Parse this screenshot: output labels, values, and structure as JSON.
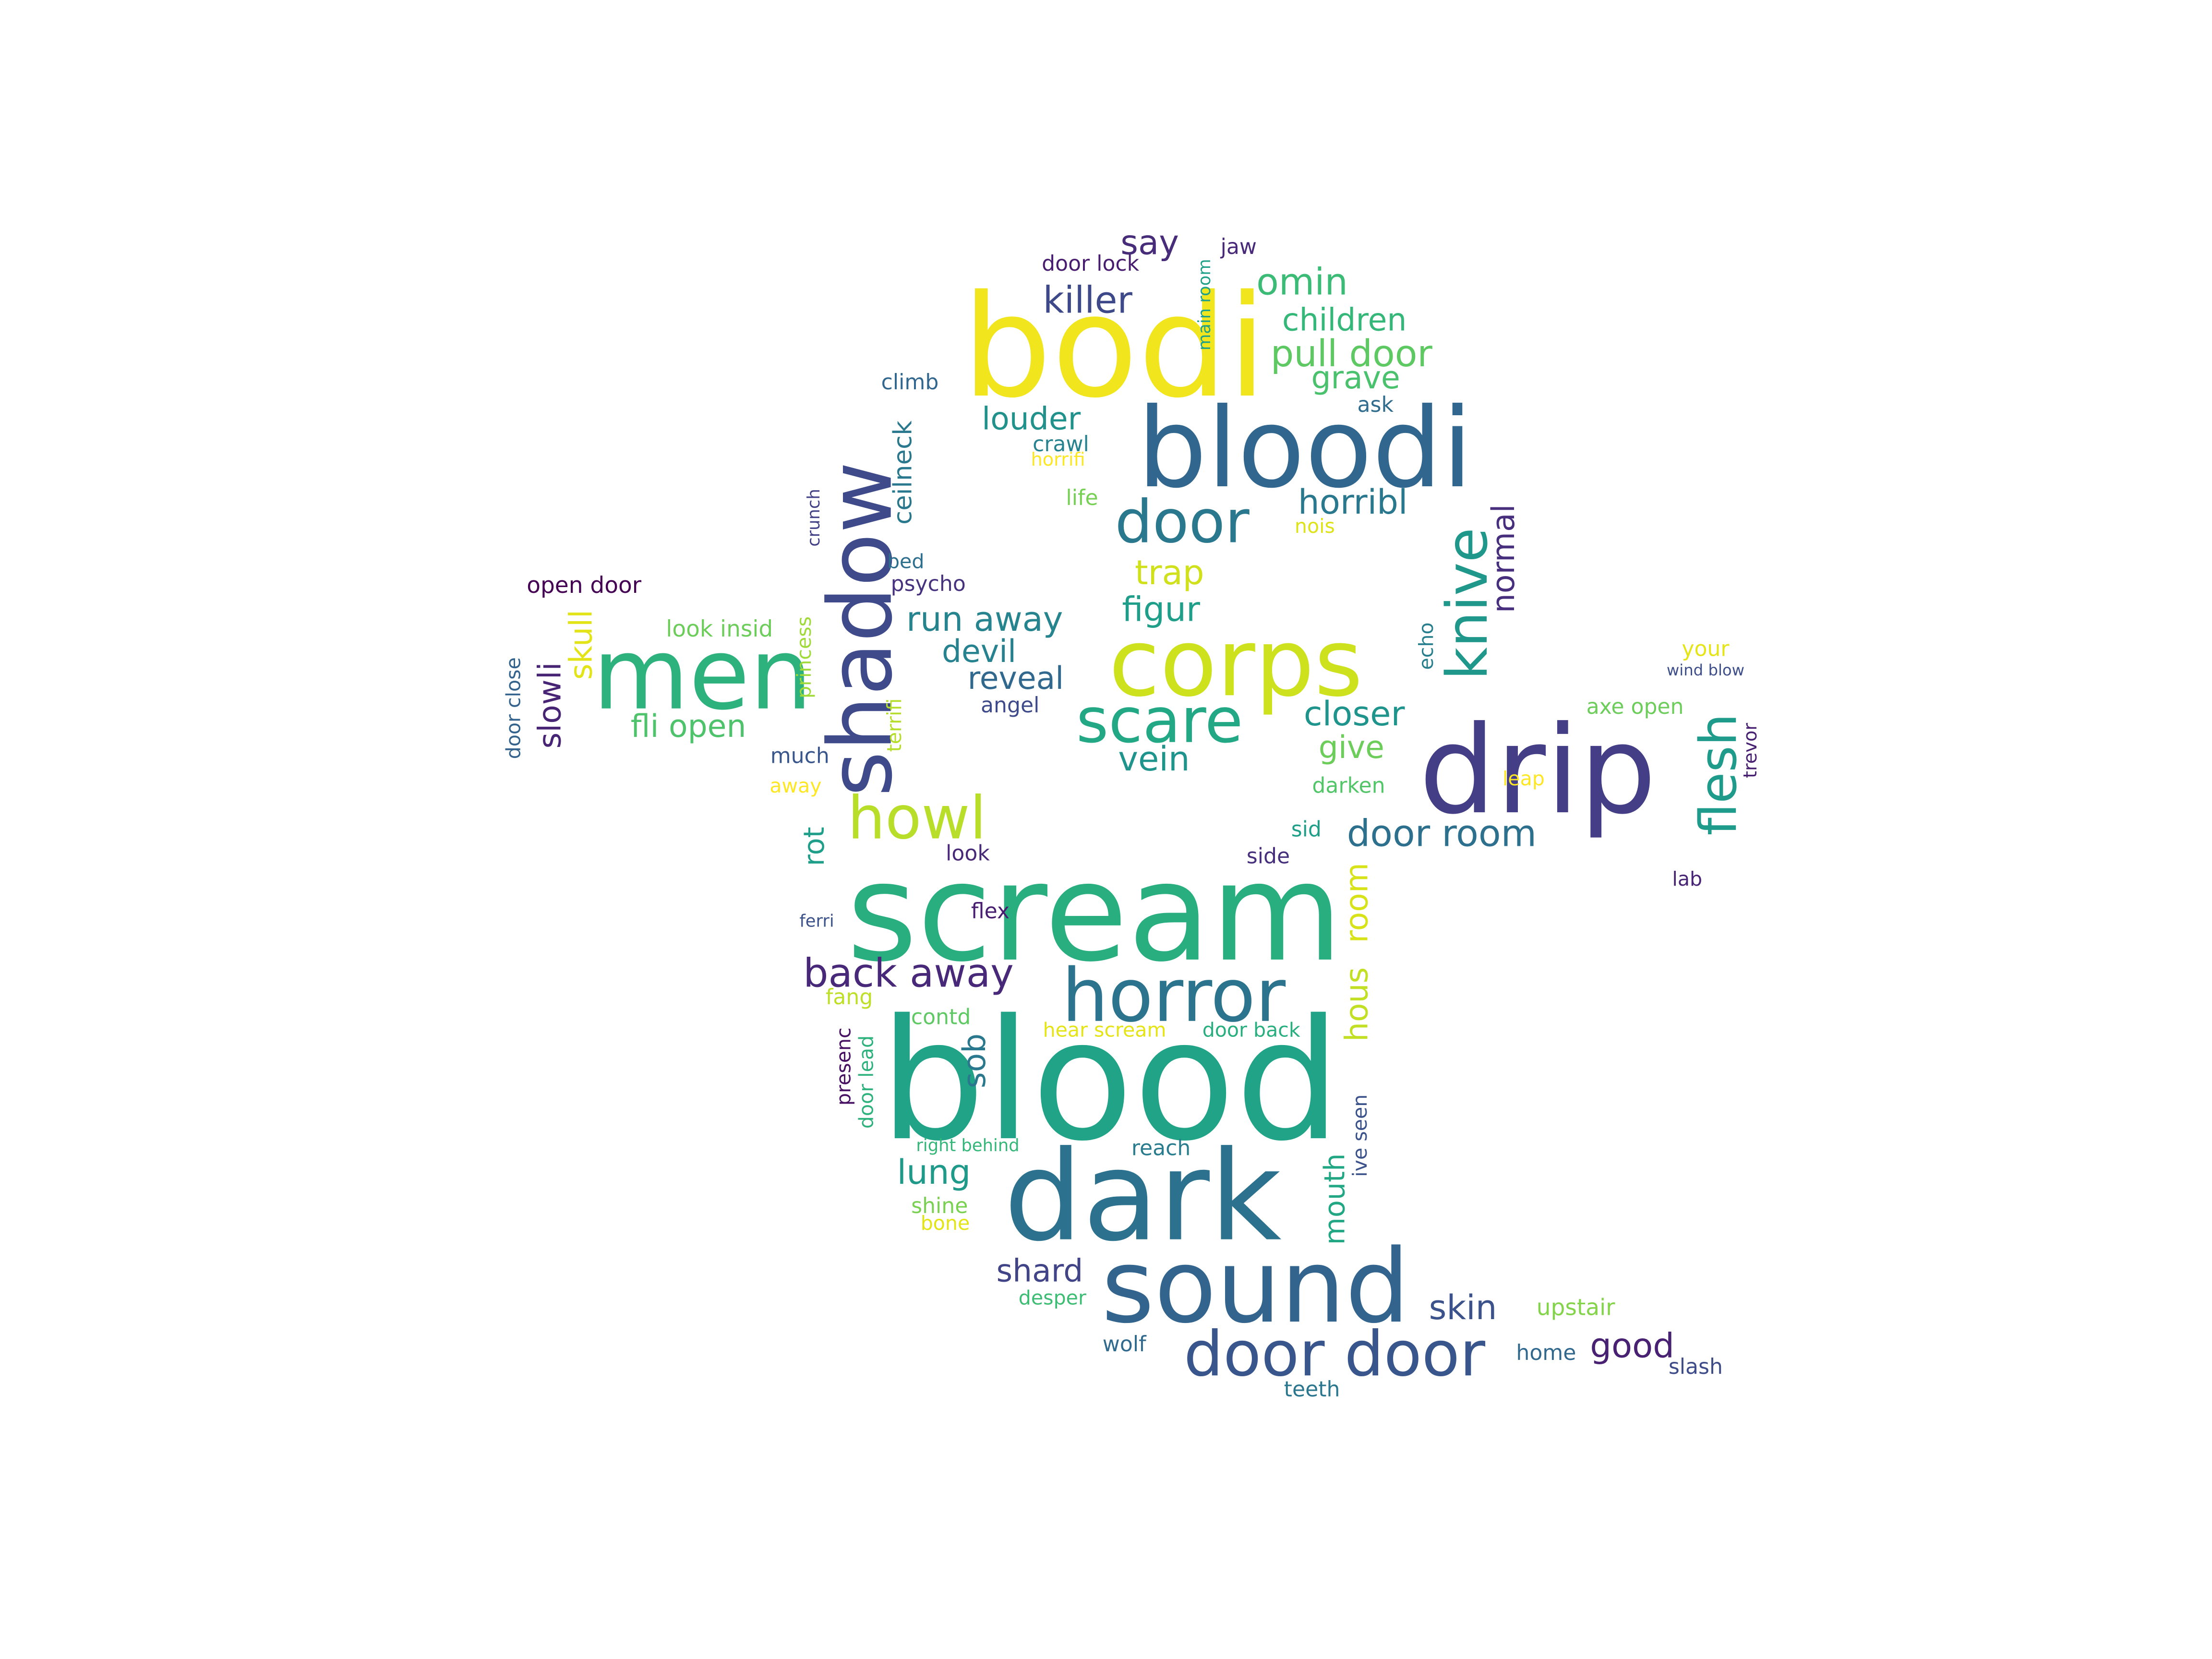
{
  "words": [
    {
      "text": "bodi",
      "color": "#f1e51d"
    },
    {
      "text": "bloodi",
      "color": "#31678e"
    },
    {
      "text": "scream",
      "color": "#29ae80"
    },
    {
      "text": "blood",
      "color": "#20a386"
    },
    {
      "text": "dark",
      "color": "#2c728e"
    },
    {
      "text": "sound",
      "color": "#32648e"
    },
    {
      "text": "drip",
      "color": "#433e85"
    },
    {
      "text": "men",
      "color": "#2db27d"
    },
    {
      "text": "shadow",
      "color": "#3e4a89"
    },
    {
      "text": "corps",
      "color": "#cde11d"
    },
    {
      "text": "horror",
      "color": "#2c738e"
    },
    {
      "text": "door door",
      "color": "#39568c"
    },
    {
      "text": "scare",
      "color": "#22a884"
    },
    {
      "text": "howl",
      "color": "#b8de29"
    },
    {
      "text": "door",
      "color": "#2a788e"
    },
    {
      "text": "knive",
      "color": "#1f988b"
    },
    {
      "text": "flesh",
      "color": "#1e9b8a"
    },
    {
      "text": "back away",
      "color": "#482878"
    },
    {
      "text": "door room",
      "color": "#2d708e"
    },
    {
      "text": "killer",
      "color": "#3e4989"
    },
    {
      "text": "omin",
      "color": "#3bbb75"
    },
    {
      "text": "children",
      "color": "#35b779"
    },
    {
      "text": "pull door",
      "color": "#5ec962"
    },
    {
      "text": "grave",
      "color": "#4ac16d"
    },
    {
      "text": "louder",
      "color": "#21918c"
    },
    {
      "text": "horribl",
      "color": "#2a788e"
    },
    {
      "text": "trap",
      "color": "#d0e11c"
    },
    {
      "text": "figur",
      "color": "#1f9e89"
    },
    {
      "text": "run away",
      "color": "#25848e"
    },
    {
      "text": "devil",
      "color": "#26828e"
    },
    {
      "text": "reveal",
      "color": "#31688e"
    },
    {
      "text": "closer",
      "color": "#1f948c"
    },
    {
      "text": "give",
      "color": "#6ccd5a"
    },
    {
      "text": "vein",
      "color": "#1f948c"
    },
    {
      "text": "fli open",
      "color": "#4ec36b"
    },
    {
      "text": "skull",
      "color": "#e2e418"
    },
    {
      "text": "slowli",
      "color": "#482475"
    },
    {
      "text": "normal",
      "color": "#472f7d"
    },
    {
      "text": "say",
      "color": "#472c7a"
    },
    {
      "text": "ceilneck",
      "color": "#2a788e"
    },
    {
      "text": "rot",
      "color": "#1f9e89"
    },
    {
      "text": "room",
      "color": "#d8e219"
    },
    {
      "text": "hous",
      "color": "#c2df23"
    },
    {
      "text": "sob",
      "color": "#2a788e"
    },
    {
      "text": "mouth",
      "color": "#22a785"
    },
    {
      "text": "lung",
      "color": "#1f9a8a"
    },
    {
      "text": "shard",
      "color": "#414487"
    },
    {
      "text": "skin",
      "color": "#3b528b"
    },
    {
      "text": "good",
      "color": "#482173"
    },
    {
      "text": "open door",
      "color": "#440154"
    },
    {
      "text": "look insid",
      "color": "#6ccd5a"
    },
    {
      "text": "door close",
      "color": "#33638d"
    },
    {
      "text": "princess",
      "color": "#a0da39"
    },
    {
      "text": "terrifi",
      "color": "#b5de2b"
    },
    {
      "text": "much",
      "color": "#39568c"
    },
    {
      "text": "away",
      "color": "#fde725"
    },
    {
      "text": "angel",
      "color": "#3e4a89"
    },
    {
      "text": "psycho",
      "color": "#46327e"
    },
    {
      "text": "bed",
      "color": "#2e6f8e"
    },
    {
      "text": "crunch",
      "color": "#424086"
    },
    {
      "text": "climb",
      "color": "#31668e"
    },
    {
      "text": "door lock",
      "color": "#481d6f"
    },
    {
      "text": "main room",
      "color": "#1fa088"
    },
    {
      "text": "jaw",
      "color": "#482878"
    },
    {
      "text": "ask",
      "color": "#2f6c8e"
    },
    {
      "text": "crawl",
      "color": "#26828e"
    },
    {
      "text": "horrifi",
      "color": "#fde725"
    },
    {
      "text": "life",
      "color": "#75d054"
    },
    {
      "text": "nois",
      "color": "#dde318"
    },
    {
      "text": "echo",
      "color": "#277f8e"
    },
    {
      "text": "your",
      "color": "#e5e419"
    },
    {
      "text": "wind blow",
      "color": "#3d4e8a"
    },
    {
      "text": "axe open",
      "color": "#6ccd5a"
    },
    {
      "text": "trevor",
      "color": "#482071"
    },
    {
      "text": "leap",
      "color": "#fde725"
    },
    {
      "text": "darken",
      "color": "#52c569"
    },
    {
      "text": "sid",
      "color": "#1f9f88"
    },
    {
      "text": "side",
      "color": "#46307e"
    },
    {
      "text": "lab",
      "color": "#482475"
    },
    {
      "text": "look",
      "color": "#482878"
    },
    {
      "text": "ferri",
      "color": "#3b528b"
    },
    {
      "text": "flex",
      "color": "#481f70"
    },
    {
      "text": "fang",
      "color": "#bddf26"
    },
    {
      "text": "contd",
      "color": "#5ec962"
    },
    {
      "text": "hear scream",
      "color": "#e5e419"
    },
    {
      "text": "door back",
      "color": "#29af7f"
    },
    {
      "text": "presenc",
      "color": "#471063"
    },
    {
      "text": "door lead",
      "color": "#2db27d"
    },
    {
      "text": "right behind",
      "color": "#35b779"
    },
    {
      "text": "reach",
      "color": "#287c8e"
    },
    {
      "text": "ive seen",
      "color": "#3b528b"
    },
    {
      "text": "shine",
      "color": "#7ad151"
    },
    {
      "text": "bone",
      "color": "#e2e418"
    },
    {
      "text": "desper",
      "color": "#3dbc74"
    },
    {
      "text": "upstair",
      "color": "#84d44b"
    },
    {
      "text": "wolf",
      "color": "#306a8e"
    },
    {
      "text": "home",
      "color": "#31688e"
    },
    {
      "text": "slash",
      "color": "#3e4c8a"
    },
    {
      "text": "teeth",
      "color": "#2a768e"
    }
  ]
}
